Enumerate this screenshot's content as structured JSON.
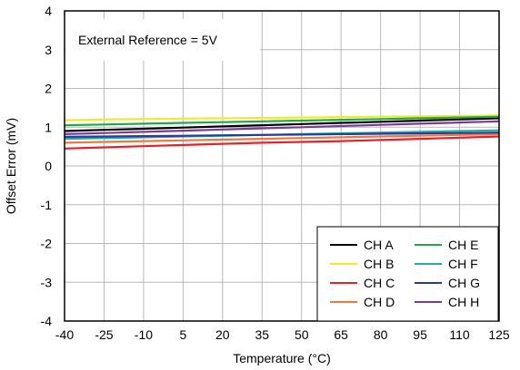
{
  "chart_data": {
    "type": "line",
    "title": "",
    "annotation": "External Reference = 5V",
    "xlabel": "Temperature (°C)",
    "ylabel": "Offset Error (mV)",
    "x": [
      -40,
      -25,
      -10,
      5,
      20,
      35,
      50,
      65,
      80,
      95,
      110,
      125
    ],
    "xlim": [
      -40,
      125
    ],
    "ylim": [
      -4,
      4
    ],
    "xticks": [
      "-40",
      "-25",
      "-10",
      "5",
      "20",
      "35",
      "50",
      "65",
      "80",
      "95",
      "110",
      "125"
    ],
    "yticks": [
      "-4",
      "-3",
      "-2",
      "-1",
      "0",
      "1",
      "2",
      "3",
      "4"
    ],
    "grid": true,
    "legend_position": "bottom-right",
    "series": [
      {
        "name": "CH A",
        "color": "#000000",
        "values": [
          0.9,
          0.93,
          0.96,
          0.99,
          1.02,
          1.05,
          1.08,
          1.11,
          1.14,
          1.17,
          1.2,
          1.23
        ]
      },
      {
        "name": "CH B",
        "color": "#f0ea2a",
        "values": [
          1.18,
          1.2,
          1.21,
          1.22,
          1.23,
          1.24,
          1.25,
          1.26,
          1.27,
          1.28,
          1.29,
          1.3
        ]
      },
      {
        "name": "CH C",
        "color": "#e8202a",
        "values": [
          0.45,
          0.48,
          0.51,
          0.54,
          0.57,
          0.6,
          0.62,
          0.64,
          0.67,
          0.7,
          0.73,
          0.76
        ]
      },
      {
        "name": "CH D",
        "color": "#f07840",
        "values": [
          0.6,
          0.62,
          0.64,
          0.66,
          0.68,
          0.7,
          0.72,
          0.74,
          0.76,
          0.78,
          0.8,
          0.82
        ]
      },
      {
        "name": "CH E",
        "color": "#22a84a",
        "values": [
          1.05,
          1.07,
          1.09,
          1.11,
          1.13,
          1.15,
          1.17,
          1.19,
          1.21,
          1.23,
          1.25,
          1.27
        ]
      },
      {
        "name": "CH F",
        "color": "#20b0a0",
        "values": [
          0.7,
          0.72,
          0.74,
          0.76,
          0.78,
          0.8,
          0.82,
          0.84,
          0.86,
          0.88,
          0.9,
          0.92
        ]
      },
      {
        "name": "CH G",
        "color": "#2a3a9a",
        "values": [
          0.75,
          0.76,
          0.77,
          0.78,
          0.79,
          0.8,
          0.81,
          0.82,
          0.83,
          0.84,
          0.85,
          0.86
        ]
      },
      {
        "name": "CH H",
        "color": "#7a3a9a",
        "values": [
          0.82,
          0.85,
          0.88,
          0.91,
          0.94,
          0.97,
          1.0,
          1.03,
          1.06,
          1.09,
          1.12,
          1.15
        ]
      }
    ]
  }
}
